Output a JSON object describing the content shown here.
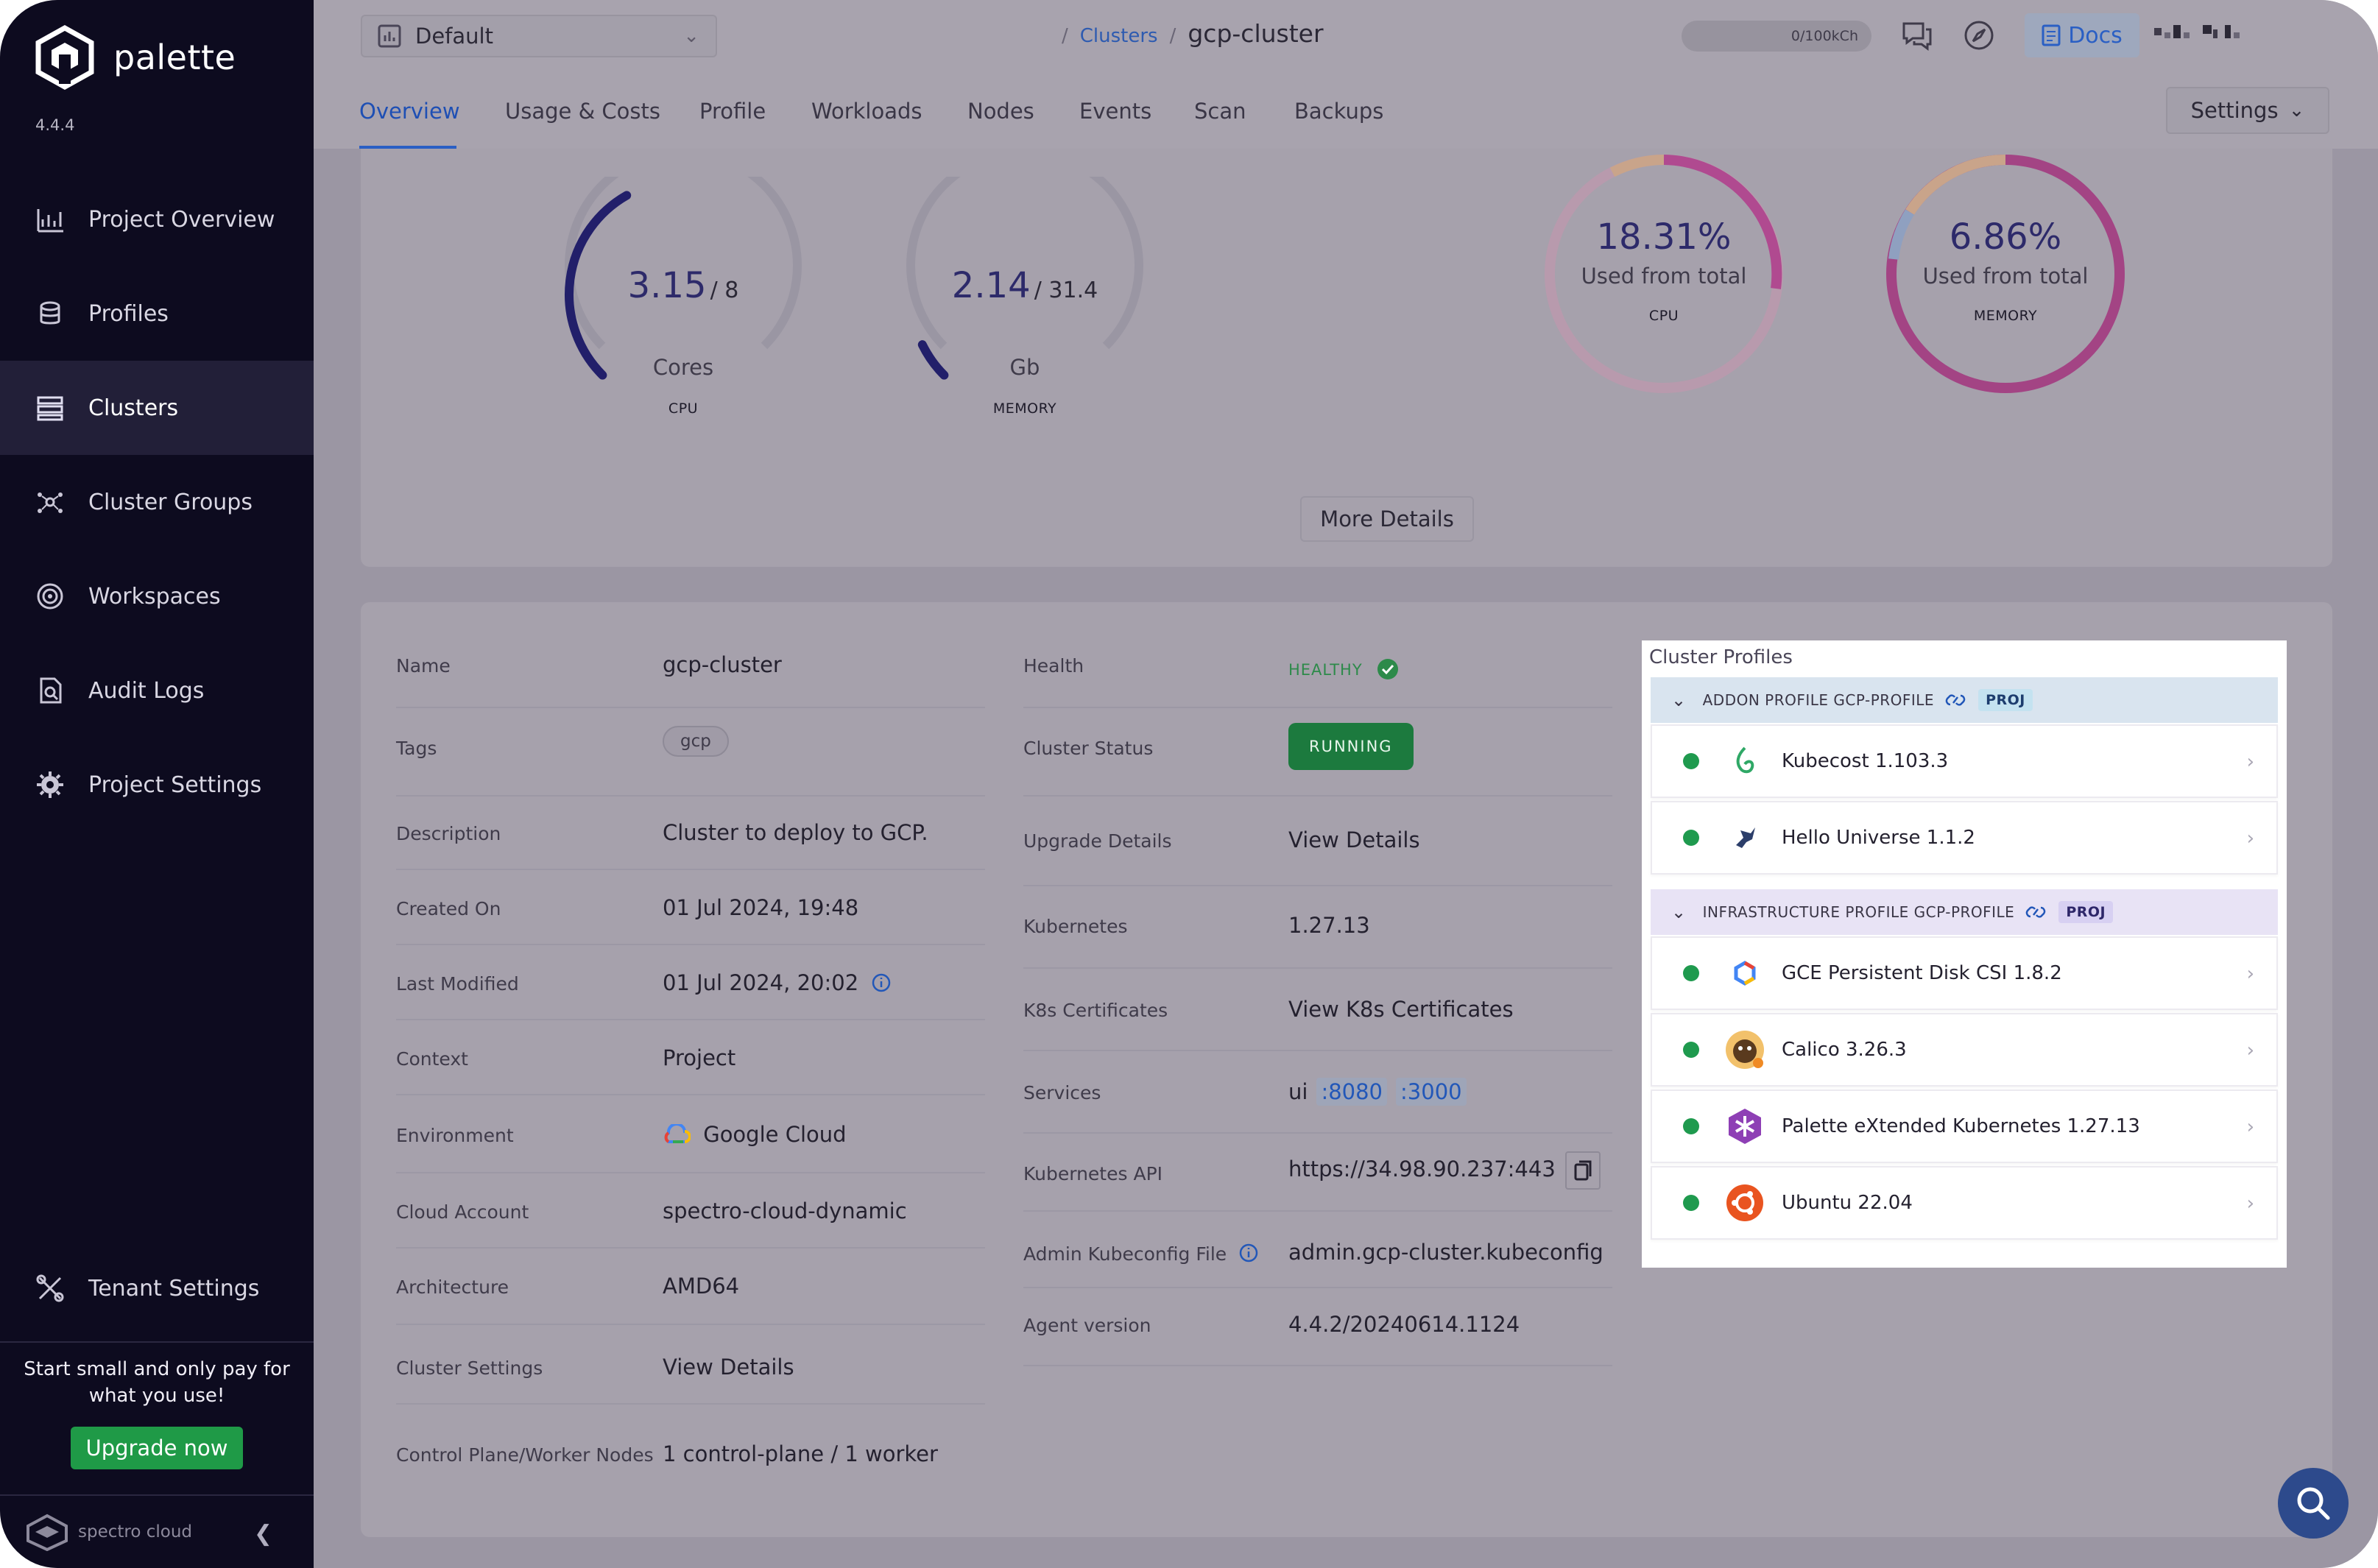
{
  "brand": {
    "name": "palette",
    "version": "4.4.4"
  },
  "sidebar": {
    "items": [
      {
        "label": "Project Overview",
        "icon": "chart-icon"
      },
      {
        "label": "Profiles",
        "icon": "stack-icon"
      },
      {
        "label": "Clusters",
        "icon": "clusters-icon",
        "active": true
      },
      {
        "label": "Cluster Groups",
        "icon": "cluster-groups-icon"
      },
      {
        "label": "Workspaces",
        "icon": "workspaces-icon"
      },
      {
        "label": "Audit Logs",
        "icon": "audit-logs-icon"
      },
      {
        "label": "Project Settings",
        "icon": "gear-icon"
      }
    ],
    "tenant_settings": "Tenant Settings",
    "promo_text": "Start small and only pay for what you use!",
    "upgrade_label": "Upgrade now",
    "footer_brand": "spectro cloud"
  },
  "topbar": {
    "project": "Default",
    "breadcrumb_link": "Clusters",
    "breadcrumb_current": "gcp-cluster",
    "usage": "0/100kCh",
    "docs_label": "Docs"
  },
  "tabs": [
    "Overview",
    "Usage & Costs",
    "Profile",
    "Workloads",
    "Nodes",
    "Events",
    "Scan",
    "Backups"
  ],
  "settings_label": "Settings",
  "metrics": {
    "cpu": {
      "value": "3.15",
      "total": "/ 8",
      "unit": "Cores",
      "label": "CPU",
      "fraction": 0.39
    },
    "memory": {
      "value": "2.14",
      "total": "/ 31.4",
      "unit": "Gb",
      "label": "MEMORY",
      "fraction": 0.07
    },
    "cpu_pct": {
      "value": "18.31%",
      "sub": "Used from total",
      "label": "CPU"
    },
    "memory_pct": {
      "value": "6.86%",
      "sub": "Used from total",
      "label": "MEMORY"
    },
    "more_details": "More Details"
  },
  "details_left": {
    "name_k": "Name",
    "name_v": "gcp-cluster",
    "tags_k": "Tags",
    "tags_v": "gcp",
    "desc_k": "Description",
    "desc_v": "Cluster to deploy to GCP.",
    "created_k": "Created On",
    "created_v": "01 Jul 2024, 19:48",
    "modified_k": "Last Modified",
    "modified_v": "01 Jul 2024, 20:02",
    "context_k": "Context",
    "context_v": "Project",
    "env_k": "Environment",
    "env_v": "Google Cloud",
    "account_k": "Cloud Account",
    "account_v": "spectro-cloud-dynamic",
    "arch_k": "Architecture",
    "arch_v": "AMD64",
    "csettings_k": "Cluster Settings",
    "csettings_v": "View Details",
    "nodes_k": "Control Plane/Worker Nodes",
    "nodes_v": "1 control-plane / 1 worker"
  },
  "details_right": {
    "health_k": "Health",
    "health_v": "HEALTHY",
    "status_k": "Cluster Status",
    "status_v": "RUNNING",
    "upgrade_k": "Upgrade Details",
    "upgrade_v": "View Details",
    "k8s_k": "Kubernetes",
    "k8s_v": "1.27.13",
    "certs_k": "K8s Certificates",
    "certs_v": "View K8s Certificates",
    "services_k": "Services",
    "services_v": "ui",
    "port1": ":8080",
    "port2": ":3000",
    "api_k": "Kubernetes API",
    "api_v": "https://34.98.90.237:443",
    "kubeconfig_k": "Admin Kubeconfig File",
    "kubeconfig_v": "admin.gcp-cluster.kubeconfig",
    "agent_k": "Agent version",
    "agent_v": "4.4.2/20240614.1124"
  },
  "profiles": {
    "title": "Cluster Profiles",
    "addon": {
      "label": "ADDON PROFILE GCP-PROFILE",
      "badge": "PROJ"
    },
    "addon_items": [
      "Kubecost 1.103.3",
      "Hello Universe 1.1.2"
    ],
    "infra": {
      "label": "INFRASTRUCTURE PROFILE GCP-PROFILE",
      "badge": "PROJ"
    },
    "infra_items": [
      "GCE Persistent Disk CSI 1.8.2",
      "Calico 3.26.3",
      "Palette eXtended Kubernetes 1.27.13",
      "Ubuntu 22.04"
    ],
    "colors": {
      "ok": "#1f9a4e",
      "addon_header": "#d9e4ef",
      "infra_header": "#e8e3f5"
    }
  }
}
